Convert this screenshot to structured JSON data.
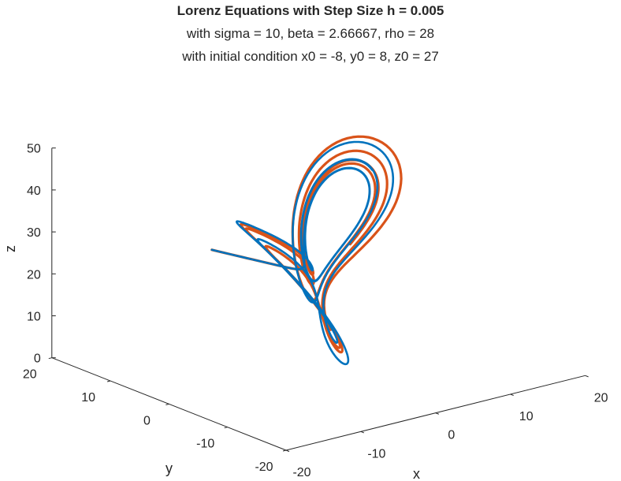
{
  "chart_data": {
    "type": "line",
    "title": "Lorenz Equations with Step Size h = 0.005",
    "subtitle_lines": [
      "with sigma = 10, beta = 2.66667, rho = 28",
      "with initial condition x0 = -8, y0 = 8, z0 = 27"
    ],
    "xlabel": "x",
    "ylabel": "y",
    "zlabel": "z",
    "xlim": [
      -20,
      20
    ],
    "ylim": [
      -20,
      20
    ],
    "zlim": [
      0,
      50
    ],
    "x_ticks": [
      "-20",
      "-10",
      "0",
      "10",
      "20"
    ],
    "y_ticks": [
      "-20",
      "-10",
      "0",
      "10",
      "20"
    ],
    "z_ticks": [
      "0",
      "10",
      "20",
      "30",
      "40",
      "50"
    ],
    "grid": false,
    "initial_condition": {
      "x0": -8,
      "y0": 8,
      "z0": 27
    },
    "parameters": {
      "sigma": 10,
      "beta": 2.66667,
      "rho": 28,
      "h": 0.005
    },
    "series": [
      {
        "color": "#0072BD",
        "method_index": 0
      },
      {
        "color": "#D95319",
        "method_index": 1
      }
    ]
  }
}
